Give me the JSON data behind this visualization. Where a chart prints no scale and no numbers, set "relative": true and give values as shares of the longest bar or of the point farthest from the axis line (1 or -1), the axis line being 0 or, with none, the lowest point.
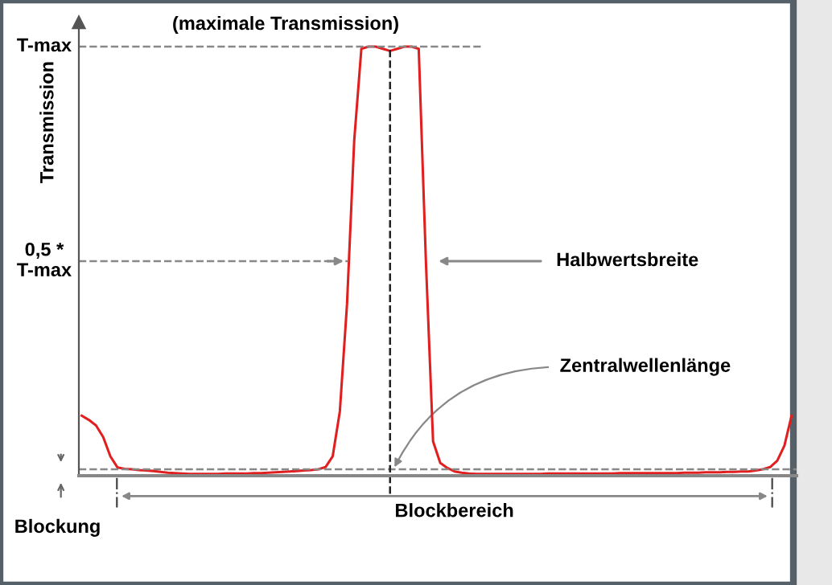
{
  "chart_data": {
    "type": "line",
    "relative": true,
    "ylabel": "Transmission",
    "categories": [
      null,
      null,
      null,
      null,
      null,
      null,
      null,
      null,
      null,
      null,
      null,
      null,
      null,
      null,
      null,
      null,
      null,
      null,
      null,
      null,
      null,
      null,
      null,
      null,
      null,
      null,
      null,
      null,
      null,
      null,
      null,
      null,
      null,
      null,
      null,
      null,
      null,
      null,
      null,
      null,
      null,
      null,
      null,
      null,
      null,
      null,
      null,
      null,
      null,
      null,
      null,
      null,
      null,
      null,
      null,
      null,
      null,
      null,
      null,
      null,
      null,
      null,
      null,
      null,
      null,
      null,
      null,
      null,
      null,
      null,
      null,
      null,
      null,
      null,
      null,
      null,
      null,
      null,
      null,
      null,
      null,
      null,
      null,
      null,
      null,
      null,
      null,
      null,
      null,
      null,
      null,
      null,
      null,
      null,
      null,
      null,
      null,
      null,
      null,
      null
    ],
    "series": [
      {
        "color": "#e02020",
        "values": [
          0.14,
          0.13,
          0.117,
          0.09,
          0.045,
          0.019,
          0.016,
          0.015,
          0.013,
          0.012,
          0.011,
          0.009,
          0.007,
          0.006,
          0.005,
          0.004,
          0.004,
          0.004,
          0.004,
          0.004,
          0.005,
          0.005,
          0.005,
          0.005,
          0.006,
          0.006,
          0.007,
          0.008,
          0.009,
          0.01,
          0.011,
          0.012,
          0.013,
          0.015,
          0.02,
          0.045,
          0.15,
          0.4,
          0.78,
          0.995,
          1.0,
          1.0,
          0.995,
          0.99,
          0.995,
          1.0,
          1.0,
          0.995,
          0.5,
          0.08,
          0.03,
          0.018,
          0.01,
          0.007,
          0.005,
          0.004,
          0.004,
          0.004,
          0.004,
          0.004,
          0.004,
          0.004,
          0.004,
          0.004,
          0.004,
          0.005,
          0.005,
          0.005,
          0.005,
          0.005,
          0.005,
          0.005,
          0.005,
          0.005,
          0.005,
          0.006,
          0.006,
          0.006,
          0.006,
          0.006,
          0.006,
          0.006,
          0.006,
          0.006,
          0.007,
          0.007,
          0.007,
          0.008,
          0.008,
          0.008,
          0.009,
          0.009,
          0.01,
          0.01,
          0.012,
          0.015,
          0.02,
          0.035,
          0.07,
          0.14
        ]
      }
    ],
    "ref_lines": [
      {
        "axis": "y",
        "value": 1,
        "label": "T-max",
        "line_style": "dashed",
        "color": "#888888"
      },
      {
        "axis": "y",
        "value": 0.5,
        "label": "0,5 *\nT-max",
        "line_style": "dashed",
        "color": "#888888"
      },
      {
        "axis": "y",
        "value": 0.015,
        "label": "Blockung",
        "line_style": "dashed",
        "color": "#888888"
      }
    ],
    "annotations": [
      "(maximale Transmission)",
      "Halbwertsbreite",
      "Zentralwellenlänge",
      "Blockbereich"
    ],
    "marker": "none",
    "line_style": "solid",
    "legend": false
  }
}
